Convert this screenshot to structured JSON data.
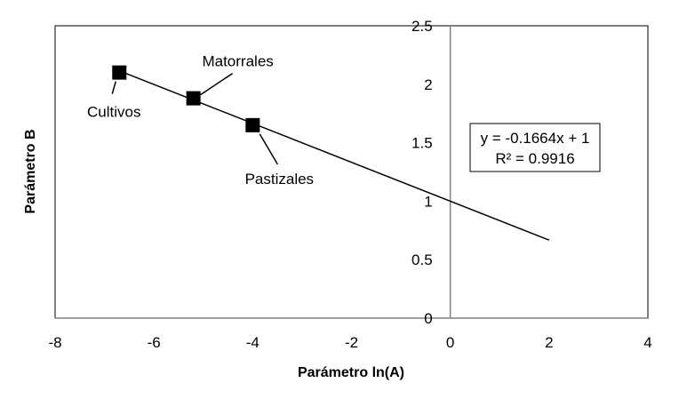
{
  "chart_data": {
    "type": "scatter",
    "title": "",
    "xlabel": "Parámetro ln(A)",
    "ylabel": "Parámetro B",
    "xlim": [
      -8,
      4
    ],
    "ylim": [
      0,
      2.5
    ],
    "xticks": [
      -8,
      -6,
      -4,
      -2,
      0,
      2,
      4
    ],
    "yticks": [
      0,
      0.5,
      1,
      1.5,
      2,
      2.5
    ],
    "x_tick_labels": [
      "-8",
      "-6",
      "-4",
      "-2",
      "0",
      "2",
      "4"
    ],
    "y_tick_labels": [
      "0",
      "0.5",
      "1",
      "1.5",
      "2",
      "2.5"
    ],
    "grid": false,
    "points": [
      {
        "label": "Cultivos",
        "x": -6.7,
        "y": 2.1
      },
      {
        "label": "Matorrales",
        "x": -5.2,
        "y": 1.88
      },
      {
        "label": "Pastizales",
        "x": -4.0,
        "y": 1.65
      }
    ],
    "trendline": {
      "slope": -0.1664,
      "intercept": 1,
      "x_range": [
        -6.7,
        2
      ],
      "equation": "y = -0.1664x + 1",
      "r_squared": "R² = 0.9916"
    },
    "colors": {
      "marker": "#000000",
      "trendline": "#000000",
      "axis_zero": "#808080",
      "frame": "#000000"
    }
  }
}
